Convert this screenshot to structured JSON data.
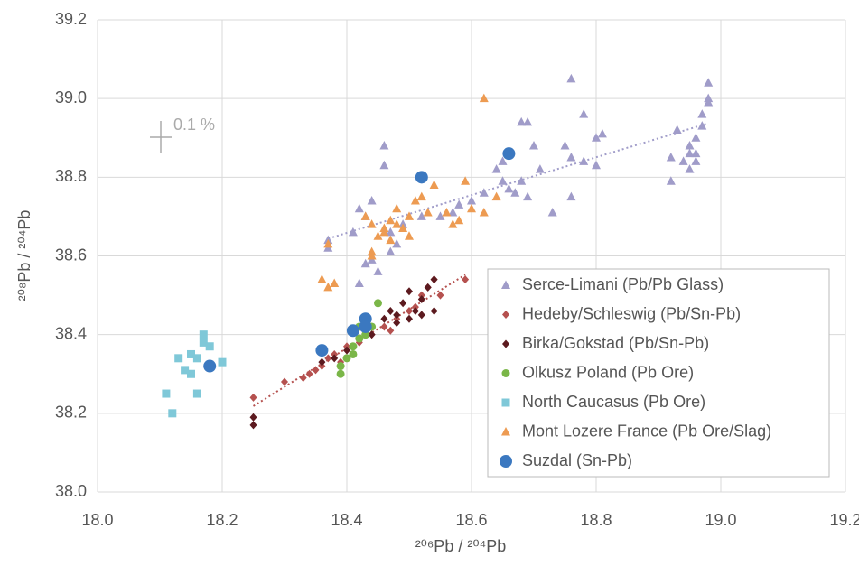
{
  "chart_data": {
    "type": "scatter",
    "x_label": "²⁰⁶Pb / ²⁰⁴Pb",
    "y_label": "²⁰⁸Pb / ²⁰⁴Pb",
    "annotation": "0.1 %",
    "xlim": [
      18.0,
      19.2
    ],
    "ylim": [
      38.0,
      39.2
    ],
    "xticks": [
      {
        "value": 18.0,
        "label": "18.0"
      },
      18.2,
      18.4,
      18.6,
      18.8,
      {
        "value": 19.0,
        "label": "19.0"
      },
      19.2
    ],
    "yticks": [
      {
        "value": 38.0,
        "label": "38.0"
      },
      38.2,
      38.4,
      38.6,
      38.8,
      {
        "value": 39.0,
        "label": "39.0"
      },
      39.2
    ],
    "grid": true,
    "legend": "lower right",
    "series": [
      {
        "name": "Serce-Limani (Pb/Pb Glass)",
        "color": "#a09cc9",
        "marker": "triangle",
        "trendline": true,
        "x": [
          18.37,
          18.37,
          18.41,
          18.42,
          18.43,
          18.44,
          18.43,
          18.44,
          18.42,
          18.45,
          18.46,
          18.46,
          18.47,
          18.48,
          18.47,
          18.49,
          18.52,
          18.55,
          18.57,
          18.58,
          18.6,
          18.62,
          18.64,
          18.65,
          18.65,
          18.66,
          18.67,
          18.68,
          18.69,
          18.68,
          18.69,
          18.7,
          18.71,
          18.73,
          18.75,
          18.76,
          18.76,
          18.76,
          18.78,
          18.78,
          18.8,
          18.81,
          18.8,
          18.92,
          18.92,
          18.93,
          18.94,
          18.95,
          18.95,
          18.96,
          18.96,
          18.97,
          18.97,
          18.98,
          18.98,
          18.98,
          18.95,
          18.96
        ],
        "values": [
          38.64,
          38.62,
          38.66,
          38.72,
          38.7,
          38.74,
          38.58,
          38.59,
          38.53,
          38.56,
          38.88,
          38.83,
          38.61,
          38.63,
          38.66,
          38.68,
          38.7,
          38.7,
          38.71,
          38.73,
          38.74,
          38.76,
          38.82,
          38.79,
          38.84,
          38.77,
          38.76,
          38.94,
          38.94,
          38.79,
          38.75,
          38.88,
          38.82,
          38.71,
          38.88,
          39.05,
          38.85,
          38.75,
          38.96,
          38.84,
          38.9,
          38.91,
          38.83,
          38.85,
          38.79,
          38.92,
          38.84,
          38.88,
          38.82,
          38.86,
          38.9,
          38.96,
          38.93,
          38.99,
          39.04,
          39.0,
          38.86,
          38.84
        ]
      },
      {
        "name": "Hedeby/Schleswig (Pb/Sn-Pb)",
        "color": "#b5514f",
        "marker": "diamond",
        "trendline": true,
        "x": [
          18.25,
          18.3,
          18.33,
          18.34,
          18.35,
          18.36,
          18.37,
          18.38,
          18.39,
          18.4,
          18.42,
          18.44,
          18.46,
          18.47,
          18.48,
          18.5,
          18.51,
          18.52,
          18.53,
          18.54,
          18.55,
          18.59
        ],
        "values": [
          38.24,
          38.28,
          38.29,
          38.3,
          38.31,
          38.32,
          38.34,
          38.35,
          38.33,
          38.37,
          38.38,
          38.4,
          38.42,
          38.41,
          38.44,
          38.46,
          38.47,
          38.5,
          38.52,
          38.54,
          38.5,
          38.54
        ]
      },
      {
        "name": "Birka/Gokstad (Pb/Sn-Pb)",
        "color": "#5c1a1f",
        "marker": "diamond",
        "x": [
          18.25,
          18.25,
          18.36,
          18.38,
          18.4,
          18.44,
          18.46,
          18.47,
          18.48,
          18.48,
          18.49,
          18.5,
          18.5,
          18.51,
          18.52,
          18.52,
          18.53,
          18.54,
          18.54
        ],
        "values": [
          38.17,
          38.19,
          38.33,
          38.34,
          38.36,
          38.4,
          38.44,
          38.46,
          38.45,
          38.43,
          38.48,
          38.44,
          38.51,
          38.46,
          38.45,
          38.49,
          38.52,
          38.54,
          38.46
        ]
      },
      {
        "name": "Olkusz Poland (Pb Ore)",
        "color": "#7ab648",
        "marker": "circle",
        "x": [
          18.39,
          18.39,
          18.4,
          18.41,
          18.41,
          18.42,
          18.42,
          18.43,
          18.44,
          18.45,
          18.43
        ],
        "values": [
          38.3,
          38.32,
          38.34,
          38.35,
          38.37,
          38.39,
          38.42,
          38.4,
          38.42,
          38.48,
          38.43
        ]
      },
      {
        "name": "North Caucasus (Pb Ore)",
        "color": "#7fc8d8",
        "marker": "square",
        "x": [
          18.11,
          18.12,
          18.13,
          18.14,
          18.15,
          18.15,
          18.16,
          18.16,
          18.17,
          18.17,
          18.18,
          18.2
        ],
        "values": [
          38.25,
          38.2,
          38.34,
          38.31,
          38.35,
          38.3,
          38.25,
          38.34,
          38.38,
          38.4,
          38.37,
          38.33
        ]
      },
      {
        "name": "Mont Lozere France (Pb Ore/Slag)",
        "color": "#ed9b52",
        "marker": "triangle",
        "x": [
          18.36,
          18.37,
          18.38,
          18.37,
          18.43,
          18.44,
          18.44,
          18.44,
          18.45,
          18.46,
          18.46,
          18.47,
          18.47,
          18.48,
          18.48,
          18.49,
          18.5,
          18.5,
          18.51,
          18.52,
          18.53,
          18.54,
          18.56,
          18.57,
          18.58,
          18.59,
          18.6,
          18.62,
          18.62,
          18.64
        ],
        "values": [
          38.54,
          38.52,
          38.53,
          38.63,
          38.7,
          38.68,
          38.61,
          38.6,
          38.65,
          38.67,
          38.66,
          38.69,
          38.64,
          38.68,
          38.72,
          38.67,
          38.7,
          38.65,
          38.74,
          38.75,
          38.71,
          38.78,
          38.71,
          38.68,
          38.69,
          38.79,
          38.72,
          38.71,
          39.0,
          38.75
        ]
      },
      {
        "name": "Suzdal (Sn-Pb)",
        "color": "#3b78c0",
        "marker": "big-circle",
        "x": [
          18.18,
          18.36,
          18.41,
          18.43,
          18.43,
          18.52,
          18.66
        ],
        "values": [
          38.32,
          38.36,
          38.41,
          38.44,
          38.42,
          38.8,
          38.86
        ]
      }
    ]
  }
}
